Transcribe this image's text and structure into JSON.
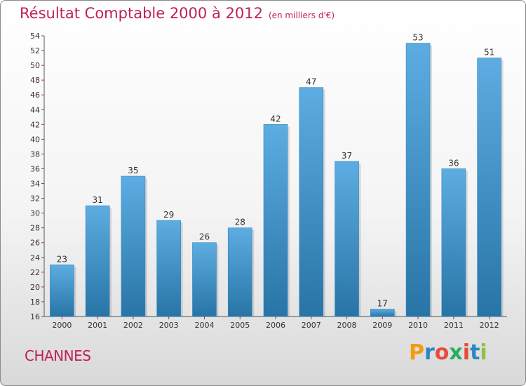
{
  "title": "Résultat Comptable 2000 à 2012",
  "subtitle": "(en milliers d'€)",
  "commune": "CHANNES",
  "logo": {
    "letters": [
      "P",
      "r",
      "o",
      "x",
      "i",
      "t",
      "i"
    ],
    "colors": [
      "#f39c12",
      "#2e86c1",
      "#e74c3c",
      "#27ae60",
      "#e74c3c",
      "#2e86c1",
      "#8bc34a"
    ]
  },
  "colors": {
    "title": "#c0205a",
    "bar_light": "#5dade2",
    "bar_dark": "#2874a6",
    "axis": "#555555",
    "tick": "#c0205a"
  },
  "chart_data": {
    "type": "bar",
    "title": "Résultat Comptable 2000 à 2012",
    "subtitle": "(en milliers d'€)",
    "categories": [
      "2000",
      "2001",
      "2002",
      "2003",
      "2004",
      "2005",
      "2006",
      "2007",
      "2008",
      "2009",
      "2010",
      "2011",
      "2012"
    ],
    "values": [
      23,
      31,
      35,
      29,
      26,
      28,
      42,
      47,
      37,
      17,
      53,
      36,
      51
    ],
    "ylim": [
      16,
      54
    ],
    "yticks": [
      16,
      18,
      20,
      22,
      24,
      26,
      28,
      30,
      32,
      34,
      36,
      38,
      40,
      42,
      44,
      46,
      48,
      50,
      52,
      54
    ],
    "grid": false,
    "legend": "none",
    "data_labels": true
  }
}
